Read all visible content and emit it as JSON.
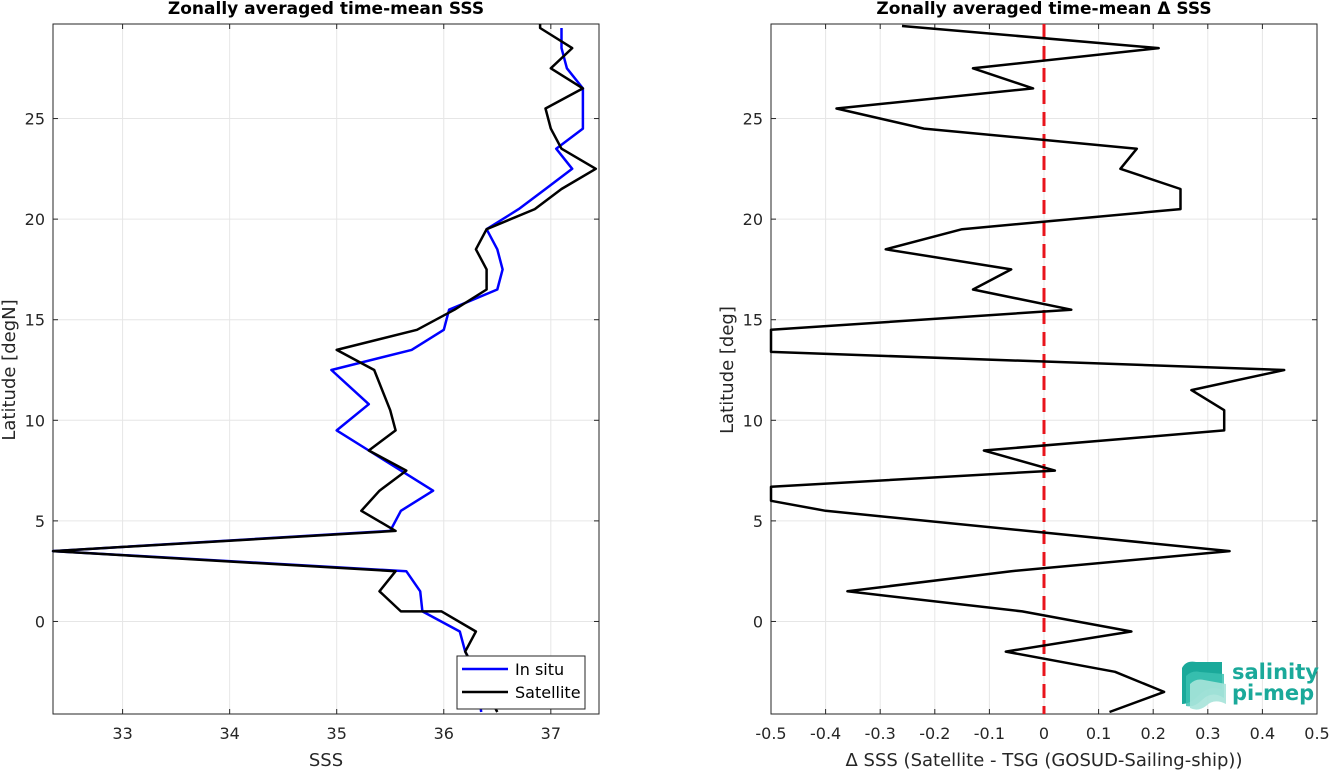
{
  "chart_data": [
    {
      "type": "line",
      "title": "Zonally averaged time-mean SSS",
      "xlabel": "SSS",
      "ylabel": "Latitude [degN]",
      "xlim": [
        32.35,
        37.45
      ],
      "ylim": [
        -4.6,
        29.7
      ],
      "xticks": [
        33,
        34,
        35,
        36,
        37
      ],
      "yticks": [
        0,
        5,
        10,
        15,
        20,
        25
      ],
      "grid": true,
      "legend": {
        "placement": "bottom-right",
        "entries": [
          "In situ",
          "Satellite"
        ]
      },
      "series": [
        {
          "name": "In situ",
          "color": "#0000ff",
          "points": [
            [
              36.35,
              -4.5
            ],
            [
              36.3,
              -2.5
            ],
            [
              36.2,
              -1.5
            ],
            [
              36.15,
              -0.5
            ],
            [
              35.8,
              0.5
            ],
            [
              35.78,
              1.5
            ],
            [
              35.65,
              2.5
            ],
            [
              32.35,
              3.5
            ],
            [
              35.5,
              4.5
            ],
            [
              35.6,
              5.5
            ],
            [
              35.9,
              6.5
            ],
            [
              35.6,
              7.5
            ],
            [
              35.3,
              8.5
            ],
            [
              35.0,
              9.5
            ],
            [
              35.3,
              10.8
            ],
            [
              34.95,
              12.5
            ],
            [
              35.7,
              13.5
            ],
            [
              36.0,
              14.5
            ],
            [
              36.05,
              15.5
            ],
            [
              36.5,
              16.5
            ],
            [
              36.55,
              17.5
            ],
            [
              36.5,
              18.5
            ],
            [
              36.4,
              19.5
            ],
            [
              36.7,
              20.5
            ],
            [
              36.95,
              21.5
            ],
            [
              37.2,
              22.5
            ],
            [
              37.05,
              23.5
            ],
            [
              37.3,
              24.5
            ],
            [
              37.3,
              25.5
            ],
            [
              37.3,
              26.5
            ],
            [
              37.15,
              27.5
            ],
            [
              37.1,
              28.5
            ],
            [
              37.1,
              29.5
            ]
          ]
        },
        {
          "name": "Satellite",
          "color": "#000000",
          "points": [
            [
              36.5,
              -4.5
            ],
            [
              36.4,
              -3.5
            ],
            [
              36.2,
              -1.5
            ],
            [
              36.3,
              -0.5
            ],
            [
              35.98,
              0.5
            ],
            [
              35.6,
              0.5
            ],
            [
              35.4,
              1.5
            ],
            [
              35.55,
              2.5
            ],
            [
              32.35,
              3.5
            ],
            [
              35.55,
              4.5
            ],
            [
              35.23,
              5.5
            ],
            [
              35.4,
              6.5
            ],
            [
              35.65,
              7.5
            ],
            [
              35.3,
              8.5
            ],
            [
              35.55,
              9.5
            ],
            [
              35.5,
              10.5
            ],
            [
              35.35,
              12.5
            ],
            [
              35.0,
              13.5
            ],
            [
              35.75,
              14.5
            ],
            [
              36.1,
              15.5
            ],
            [
              36.4,
              16.5
            ],
            [
              36.4,
              17.5
            ],
            [
              36.3,
              18.5
            ],
            [
              36.4,
              19.5
            ],
            [
              36.85,
              20.5
            ],
            [
              37.1,
              21.5
            ],
            [
              37.42,
              22.5
            ],
            [
              37.1,
              23.5
            ],
            [
              37.0,
              24.5
            ],
            [
              36.95,
              25.5
            ],
            [
              37.3,
              26.5
            ],
            [
              37.0,
              27.5
            ],
            [
              37.2,
              28.5
            ],
            [
              36.9,
              29.5
            ],
            [
              36.9,
              29.7
            ]
          ]
        }
      ]
    },
    {
      "type": "line",
      "title": "Zonally averaged time-mean Δ SSS",
      "xlabel": "Δ SSS (Satellite - TSG (GOSUD-Sailing-ship))",
      "ylabel": "Latitude [deg]",
      "xlim": [
        -0.5,
        0.5
      ],
      "ylim": [
        -4.6,
        29.7
      ],
      "xticks": [
        -0.5,
        -0.4,
        -0.3,
        -0.2,
        -0.1,
        0,
        0.1,
        0.2,
        0.3,
        0.4,
        0.5
      ],
      "xtick_labels": [
        "-0.5",
        "-0.4",
        "-0.3",
        "-0.2",
        "-0.1",
        "0",
        "0.1",
        "0.2",
        "0.3",
        "0.4",
        "0.5"
      ],
      "yticks": [
        0,
        5,
        10,
        15,
        20,
        25
      ],
      "grid": true,
      "reference_line": {
        "x": 0,
        "style": "dashed",
        "color": "#e8141c"
      },
      "series": [
        {
          "color": "#000000",
          "points": [
            [
              0.12,
              -4.5
            ],
            [
              0.22,
              -3.5
            ],
            [
              0.13,
              -2.5
            ],
            [
              -0.07,
              -1.5
            ],
            [
              0.16,
              -0.5
            ],
            [
              -0.04,
              0.5
            ],
            [
              -0.36,
              1.5
            ],
            [
              -0.06,
              2.5
            ],
            [
              0.34,
              3.5
            ],
            [
              -0.4,
              5.5
            ],
            [
              -0.5,
              6.0
            ],
            [
              -0.5,
              6.7
            ],
            [
              0.02,
              7.5
            ],
            [
              -0.11,
              8.5
            ],
            [
              0.33,
              9.5
            ],
            [
              0.33,
              10.5
            ],
            [
              0.27,
              11.5
            ],
            [
              0.44,
              12.5
            ],
            [
              -0.5,
              13.4
            ],
            [
              -0.5,
              14.5
            ],
            [
              0.05,
              15.5
            ],
            [
              -0.13,
              16.5
            ],
            [
              -0.06,
              17.5
            ],
            [
              -0.29,
              18.5
            ],
            [
              -0.15,
              19.5
            ],
            [
              0.25,
              20.5
            ],
            [
              0.25,
              21.5
            ],
            [
              0.14,
              22.5
            ],
            [
              0.17,
              23.5
            ],
            [
              -0.22,
              24.5
            ],
            [
              -0.38,
              25.5
            ],
            [
              -0.02,
              26.5
            ],
            [
              -0.13,
              27.5
            ],
            [
              0.21,
              28.5
            ],
            [
              -0.26,
              29.6
            ]
          ]
        }
      ]
    }
  ],
  "logo": {
    "line1": "salinity",
    "line2": "pi-mep"
  }
}
